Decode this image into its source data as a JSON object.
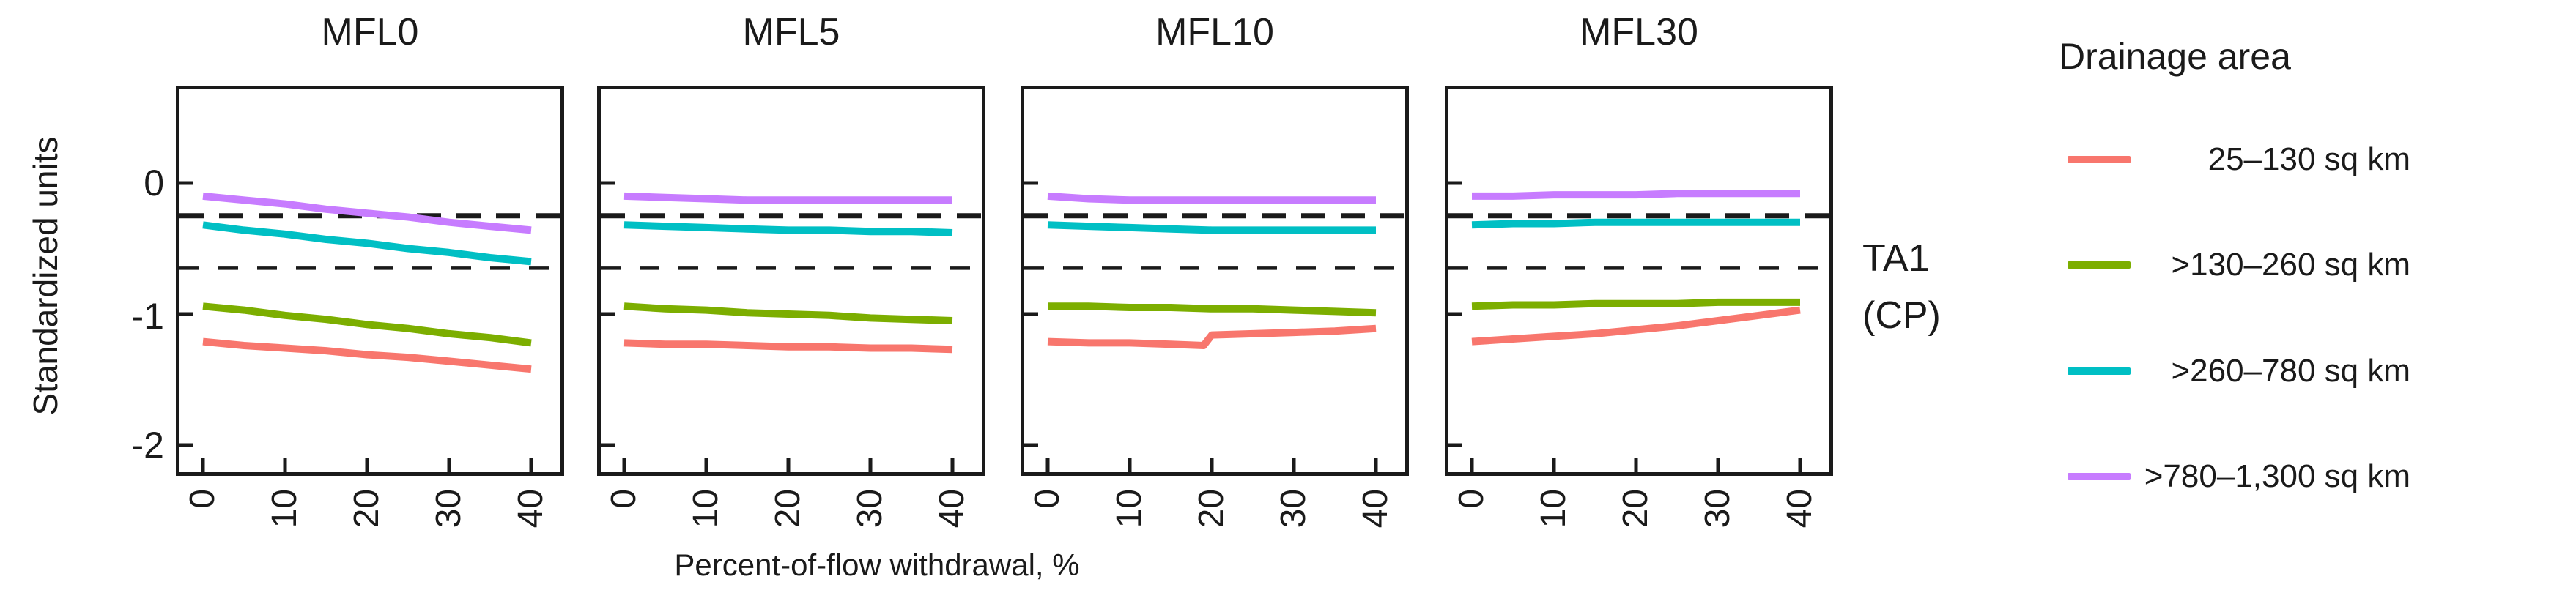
{
  "figure": {
    "right_annotation_line1": "TA1",
    "right_annotation_line2": "(CP)"
  },
  "legend": {
    "title": "Drainage area",
    "items": [
      {
        "label": "25–130 sq km",
        "color": "#F8766D"
      },
      {
        "label": ">130–260 sq km",
        "color": "#7CAE00"
      },
      {
        "label": ">260–780 sq km",
        "color": "#00BFC4"
      },
      {
        "label": ">780–1,300 sq km",
        "color": "#C77CFF"
      }
    ]
  },
  "chart_data": {
    "type": "line",
    "xlabel": "Percent-of-flow withdrawal, %",
    "ylabel": "Standardized units",
    "x_ticks": [
      0,
      10,
      20,
      30,
      40
    ],
    "x_tick_labels": [
      "0",
      "10",
      "20",
      "30",
      "40"
    ],
    "y_ticks": [
      0,
      -1,
      -2
    ],
    "y_tick_labels": [
      "0",
      "-1",
      "-2"
    ],
    "xlim": [
      -3.3,
      44
    ],
    "ylim": [
      -2.23,
      0.74
    ],
    "grid": false,
    "legend_position": "right",
    "annotation": "TA1 (CP)",
    "reference_lines": [
      {
        "y": -0.25,
        "style": "dashed",
        "weight": "bold"
      },
      {
        "y": -0.65,
        "style": "dashed",
        "weight": "thin"
      }
    ],
    "facets": [
      {
        "title": "MFL0",
        "series": [
          {
            "name": "25–130 sq km",
            "color": "#F8766D",
            "x": [
              0,
              5,
              10,
              15,
              20,
              25,
              30,
              35,
              40
            ],
            "y": [
              -1.21,
              -1.24,
              -1.26,
              -1.28,
              -1.31,
              -1.33,
              -1.36,
              -1.39,
              -1.42
            ]
          },
          {
            "name": ">130–260 sq km",
            "color": "#7CAE00",
            "x": [
              0,
              5,
              10,
              15,
              20,
              25,
              30,
              35,
              40
            ],
            "y": [
              -0.94,
              -0.97,
              -1.01,
              -1.04,
              -1.08,
              -1.11,
              -1.15,
              -1.18,
              -1.22
            ]
          },
          {
            "name": ">260–780 sq km",
            "color": "#00BFC4",
            "x": [
              0,
              5,
              10,
              15,
              20,
              25,
              30,
              35,
              40
            ],
            "y": [
              -0.32,
              -0.36,
              -0.39,
              -0.43,
              -0.46,
              -0.5,
              -0.53,
              -0.57,
              -0.6
            ]
          },
          {
            "name": ">780–1,300 sq km",
            "color": "#C77CFF",
            "x": [
              0,
              5,
              10,
              15,
              20,
              25,
              30,
              35,
              40
            ],
            "y": [
              -0.1,
              -0.13,
              -0.16,
              -0.2,
              -0.23,
              -0.26,
              -0.3,
              -0.33,
              -0.36
            ]
          }
        ]
      },
      {
        "title": "MFL5",
        "series": [
          {
            "name": "25–130 sq km",
            "color": "#F8766D",
            "x": [
              0,
              5,
              10,
              15,
              20,
              25,
              30,
              35,
              40
            ],
            "y": [
              -1.22,
              -1.23,
              -1.23,
              -1.24,
              -1.25,
              -1.25,
              -1.26,
              -1.26,
              -1.27
            ]
          },
          {
            "name": ">130–260 sq km",
            "color": "#7CAE00",
            "x": [
              0,
              5,
              10,
              15,
              20,
              25,
              30,
              35,
              40
            ],
            "y": [
              -0.94,
              -0.96,
              -0.97,
              -0.99,
              -1.0,
              -1.01,
              -1.03,
              -1.04,
              -1.05
            ]
          },
          {
            "name": ">260–780 sq km",
            "color": "#00BFC4",
            "x": [
              0,
              5,
              10,
              15,
              20,
              25,
              30,
              35,
              40
            ],
            "y": [
              -0.32,
              -0.33,
              -0.34,
              -0.35,
              -0.36,
              -0.36,
              -0.37,
              -0.37,
              -0.38
            ]
          },
          {
            "name": ">780–1,300 sq km",
            "color": "#C77CFF",
            "x": [
              0,
              5,
              10,
              15,
              20,
              25,
              30,
              35,
              40
            ],
            "y": [
              -0.1,
              -0.11,
              -0.12,
              -0.13,
              -0.13,
              -0.13,
              -0.13,
              -0.13,
              -0.13
            ]
          }
        ]
      },
      {
        "title": "MFL10",
        "series": [
          {
            "name": "25–130 sq km",
            "color": "#F8766D",
            "x": [
              0,
              5,
              10,
              15,
              19,
              20,
              25,
              30,
              35,
              40
            ],
            "y": [
              -1.21,
              -1.22,
              -1.22,
              -1.23,
              -1.24,
              -1.16,
              -1.15,
              -1.14,
              -1.13,
              -1.11
            ]
          },
          {
            "name": ">130–260 sq km",
            "color": "#7CAE00",
            "x": [
              0,
              5,
              10,
              15,
              20,
              25,
              30,
              35,
              40
            ],
            "y": [
              -0.94,
              -0.94,
              -0.95,
              -0.95,
              -0.96,
              -0.96,
              -0.97,
              -0.98,
              -0.99
            ]
          },
          {
            "name": ">260–780 sq km",
            "color": "#00BFC4",
            "x": [
              0,
              5,
              10,
              15,
              20,
              25,
              30,
              35,
              40
            ],
            "y": [
              -0.32,
              -0.33,
              -0.34,
              -0.35,
              -0.36,
              -0.36,
              -0.36,
              -0.36,
              -0.36
            ]
          },
          {
            "name": ">780–1,300 sq km",
            "color": "#C77CFF",
            "x": [
              0,
              5,
              10,
              15,
              20,
              25,
              30,
              35,
              40
            ],
            "y": [
              -0.1,
              -0.12,
              -0.13,
              -0.13,
              -0.13,
              -0.13,
              -0.13,
              -0.13,
              -0.13
            ]
          }
        ]
      },
      {
        "title": "MFL30",
        "series": [
          {
            "name": "25–130 sq km",
            "color": "#F8766D",
            "x": [
              0,
              5,
              10,
              15,
              20,
              25,
              30,
              35,
              40
            ],
            "y": [
              -1.21,
              -1.19,
              -1.17,
              -1.15,
              -1.12,
              -1.09,
              -1.05,
              -1.01,
              -0.97
            ]
          },
          {
            "name": ">130–260 sq km",
            "color": "#7CAE00",
            "x": [
              0,
              5,
              10,
              15,
              20,
              25,
              30,
              35,
              40
            ],
            "y": [
              -0.94,
              -0.93,
              -0.93,
              -0.92,
              -0.92,
              -0.92,
              -0.91,
              -0.91,
              -0.91
            ]
          },
          {
            "name": ">260–780 sq km",
            "color": "#00BFC4",
            "x": [
              0,
              5,
              10,
              15,
              20,
              25,
              30,
              35,
              40
            ],
            "y": [
              -0.32,
              -0.31,
              -0.31,
              -0.3,
              -0.3,
              -0.3,
              -0.3,
              -0.3,
              -0.3
            ]
          },
          {
            "name": ">780–1,300 sq km",
            "color": "#C77CFF",
            "x": [
              0,
              5,
              10,
              15,
              20,
              25,
              30,
              35,
              40
            ],
            "y": [
              -0.1,
              -0.1,
              -0.09,
              -0.09,
              -0.09,
              -0.08,
              -0.08,
              -0.08,
              -0.08
            ]
          }
        ]
      }
    ]
  }
}
